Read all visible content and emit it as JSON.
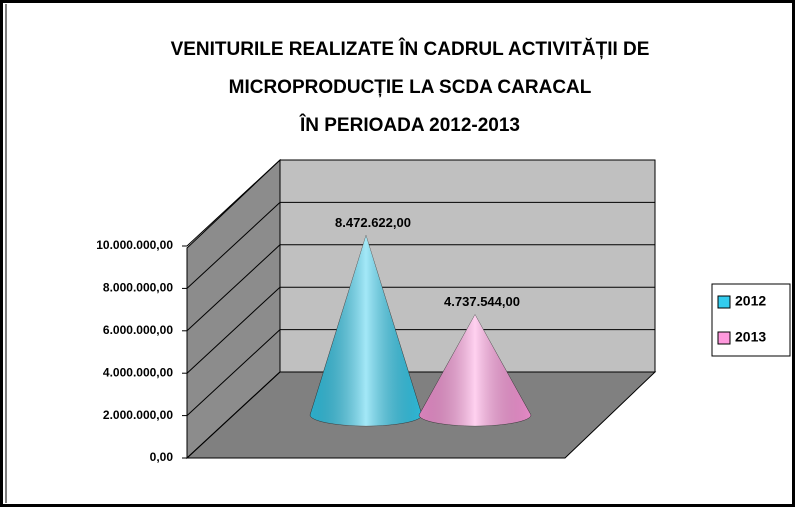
{
  "chart_data": {
    "type": "cone3d",
    "title_lines": [
      "VENITURILE REALIZATE ÎN CADRUL ACTIVITĂȚII DE",
      "MICROPRODUCȚIE LA SCDA CARACAL",
      "ÎN PERIOADA 2012-2013"
    ],
    "categories": [
      null
    ],
    "series": [
      {
        "name": "2012",
        "color": "#33ccee",
        "values": [
          8472622
        ],
        "value_labels": [
          "8.472.622,00"
        ]
      },
      {
        "name": "2013",
        "color": "#ff99dd",
        "values": [
          4737544
        ],
        "value_labels": [
          "4.737.544,00"
        ]
      }
    ],
    "ylim": [
      0,
      10000000
    ],
    "yticks": [
      {
        "value": 0,
        "label": "0,00"
      },
      {
        "value": 2000000,
        "label": "2.000.000,00"
      },
      {
        "value": 4000000,
        "label": "4.000.000,00"
      },
      {
        "value": 6000000,
        "label": "6.000.000,00"
      },
      {
        "value": 8000000,
        "label": "8.000.000,00"
      },
      {
        "value": 10000000,
        "label": "10.000.000,00"
      }
    ],
    "grid": true,
    "legend": "right"
  }
}
